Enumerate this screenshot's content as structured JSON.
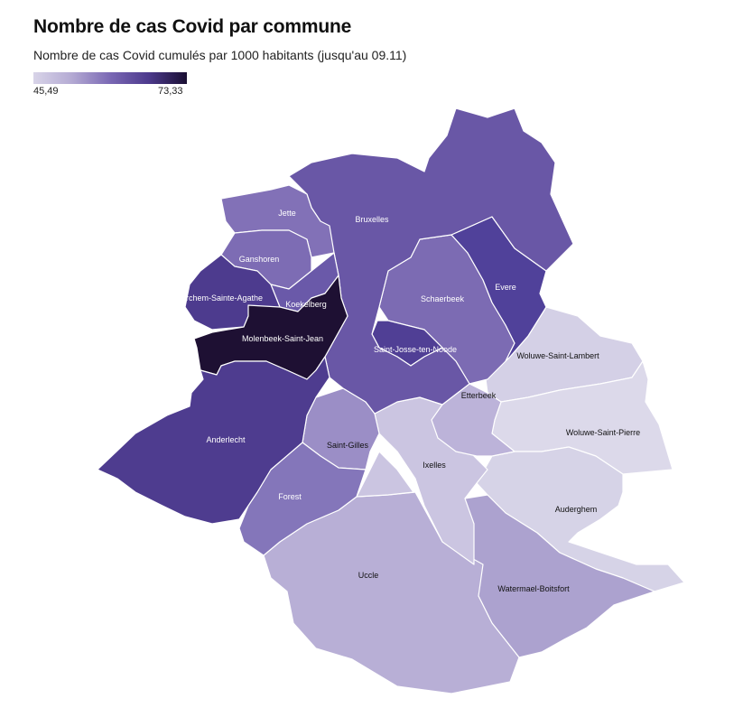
{
  "title": "Nombre de cas Covid par commune",
  "subtitle": "Nombre de cas Covid cumulés par 1000 habitants (jusqu'au 09.11)",
  "legend": {
    "min_label": "45,49",
    "max_label": "73,33",
    "min_color": "#d8d4e8",
    "max_color": "#1a0f33"
  },
  "communes": [
    {
      "name": "Bruxelles",
      "color": "#6957a6"
    },
    {
      "name": "Jette",
      "color": "#8271b7"
    },
    {
      "name": "Ganshoren",
      "color": "#7d6cb4"
    },
    {
      "name": "Berchem-Sainte-Agathe",
      "color": "#4d3b8e"
    },
    {
      "name": "Koekelberg",
      "color": "#6a59a9"
    },
    {
      "name": "Molenbeek-Saint-Jean",
      "color": "#1e1033"
    },
    {
      "name": "Anderlecht",
      "color": "#4e3c8f"
    },
    {
      "name": "Schaerbeek",
      "color": "#7c6bb3"
    },
    {
      "name": "Evere",
      "color": "#50419a"
    },
    {
      "name": "Saint-Josse-ten-Noode",
      "color": "#503f95"
    },
    {
      "name": "Woluwe-Saint-Lambert",
      "color": "#d4d0e6"
    },
    {
      "name": "Woluwe-Saint-Pierre",
      "color": "#dcd9ea"
    },
    {
      "name": "Etterbeek",
      "color": "#bcb3d9"
    },
    {
      "name": "Saint-Gilles",
      "color": "#9b8ec6"
    },
    {
      "name": "Ixelles",
      "color": "#cbc5e1"
    },
    {
      "name": "Forest",
      "color": "#8476ba"
    },
    {
      "name": "Auderghem",
      "color": "#d6d3e7"
    },
    {
      "name": "Uccle",
      "color": "#b8afd6"
    },
    {
      "name": "Watermael-Boitsfort",
      "color": "#aca2cf"
    }
  ]
}
